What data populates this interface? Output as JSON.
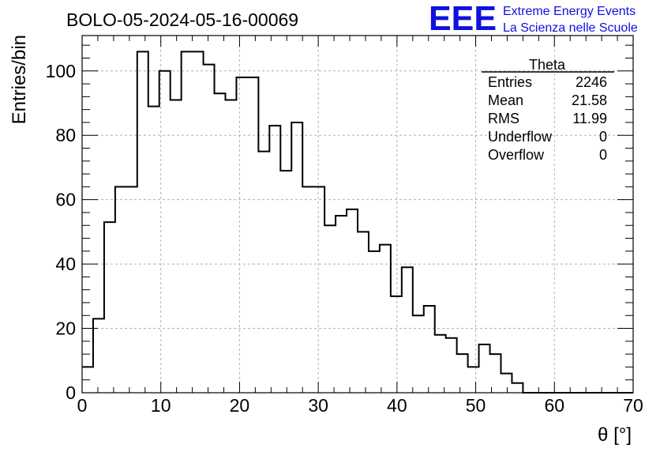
{
  "chart_data": {
    "type": "bar",
    "title": "BOLO-05-2024-05-16-00069",
    "xlabel": "θ [°]",
    "ylabel": "Entries/bin",
    "xlim": [
      0,
      70
    ],
    "ylim": [
      0,
      111
    ],
    "grid": true,
    "bin_width": 1.4,
    "x_ticks": [
      "0",
      "10",
      "20",
      "30",
      "40",
      "50",
      "60",
      "70"
    ],
    "y_ticks": [
      "0",
      "20",
      "40",
      "60",
      "80",
      "100"
    ],
    "values": [
      8,
      23,
      53,
      64,
      64,
      106,
      89,
      100,
      91,
      106,
      106,
      102,
      93,
      91,
      98,
      98,
      75,
      83,
      69,
      84,
      64,
      64,
      52,
      55,
      57,
      50,
      44,
      46,
      30,
      39,
      24,
      27,
      18,
      17,
      12,
      8,
      15,
      12,
      6,
      3,
      0,
      0,
      0,
      0,
      0,
      0,
      0,
      0,
      0,
      0
    ]
  },
  "stats_box": {
    "title": "Theta",
    "rows": [
      {
        "label": "Entries",
        "value": "2246"
      },
      {
        "label": "Mean",
        "value": "21.58"
      },
      {
        "label": "RMS",
        "value": "11.99"
      },
      {
        "label": "Underflow",
        "value": "0"
      },
      {
        "label": "Overflow",
        "value": "0"
      }
    ]
  },
  "logo": {
    "letters": "EEE",
    "line1": "Extreme Energy Events",
    "line2": "La Scienza nelle Scuole",
    "color": "#1010e0"
  }
}
